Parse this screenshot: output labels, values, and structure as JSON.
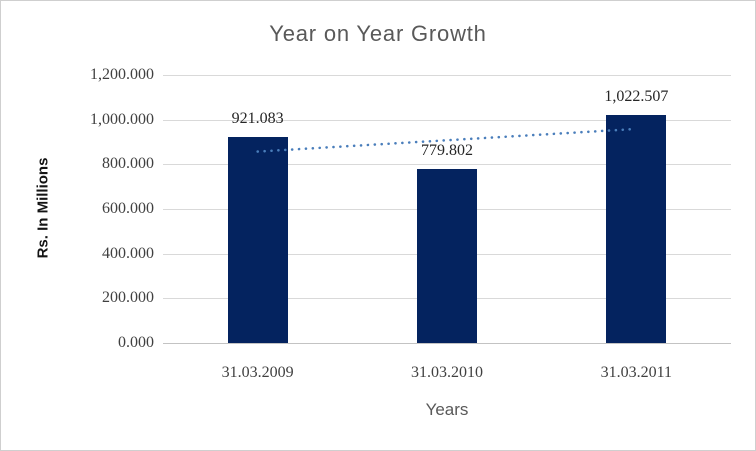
{
  "chart_data": {
    "type": "bar",
    "title": "Year on Year Growth",
    "xlabel": "Years",
    "ylabel": "Rs. In Millions",
    "categories": [
      "31.03.2009",
      "31.03.2010",
      "31.03.2011"
    ],
    "values": [
      921.083,
      779.802,
      1022.507
    ],
    "data_labels": [
      "921.083",
      "779.802",
      "1,022.507"
    ],
    "ylim": [
      0,
      1200
    ],
    "y_ticks": [
      {
        "value": 0,
        "label": "0.000"
      },
      {
        "value": 200,
        "label": "200.000"
      },
      {
        "value": 400,
        "label": "400.000"
      },
      {
        "value": 600,
        "label": "600.000"
      },
      {
        "value": 800,
        "label": "800.000"
      },
      {
        "value": 1000,
        "label": "1,000.000"
      },
      {
        "value": 1200,
        "label": "1,200.000"
      }
    ],
    "grid": true,
    "legend": "none",
    "trendline": {
      "style": "dotted",
      "endpoint_values": [
        857.085,
        958.509
      ]
    },
    "colors": {
      "bar": "#04235f",
      "trendline": "#4a7ebb",
      "gridline": "#d9d9d9",
      "axis_line": "#c3c3c3",
      "title_text": "#595959",
      "tick_text": "#404040",
      "data_label_text": "#262626",
      "axis_title_text": "#141414",
      "background": "#ffffff",
      "border": "#cfcfcf"
    }
  }
}
